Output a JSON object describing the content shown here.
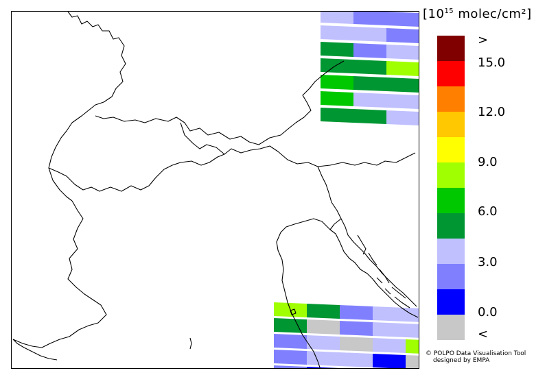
{
  "unit_label": {
    "prefix": "[10",
    "exponent": "15",
    "suffix": " molec/cm²]"
  },
  "colorbar": {
    "bins": [
      {
        "color": "#800000"
      },
      {
        "color": "#ff0000"
      },
      {
        "color": "#ff8000"
      },
      {
        "color": "#ffc800"
      },
      {
        "color": "#ffff00"
      },
      {
        "color": "#a0ff00"
      },
      {
        "color": "#00c800"
      },
      {
        "color": "#009632"
      },
      {
        "color": "#c0c0ff"
      },
      {
        "color": "#8080ff"
      },
      {
        "color": "#0000ff"
      },
      {
        "color": "#c8c8c8"
      }
    ],
    "labels": [
      ">",
      "15.0",
      "12.0",
      "9.0",
      "6.0",
      "3.0",
      "0.0",
      "<"
    ]
  },
  "credit": {
    "line1": "© POLPO Data Visualisation Tool",
    "line2": "designed by EMPA"
  },
  "swaths": {
    "north_east": {
      "rows": [
        [
          "#c0c0ff",
          "#8080ff",
          "#8080ff",
          "#8080ff"
        ],
        [
          "#c0c0ff",
          "#c0c0ff",
          "#8080ff",
          "#8080ff"
        ],
        [
          "#009632",
          "#8080ff",
          "#c0c0ff",
          "#c0c0ff"
        ],
        [
          "#009632",
          "#009632",
          "#a0ff00",
          "#00c800"
        ],
        [
          "#00c800",
          "#009632",
          "#009632",
          "#c0c0ff"
        ],
        [
          "#00c800",
          "#c0c0ff",
          "#c0c0ff",
          "#c0c0ff"
        ],
        [
          "#009632",
          "#009632",
          "#c0c0ff",
          "#009632"
        ]
      ]
    },
    "south_east": {
      "rows": [
        [
          "#a0ff00",
          "#009632",
          "#8080ff",
          "#c0c0ff",
          "#c0c0ff"
        ],
        [
          "#009632",
          "#c8c8c8",
          "#8080ff",
          "#c0c0ff",
          "#c0c0ff"
        ],
        [
          "#8080ff",
          "#c0c0ff",
          "#c8c8c8",
          "#c0c0ff",
          "#a0ff00"
        ],
        [
          "#8080ff",
          "#c0c0ff",
          "#c0c0ff",
          "#0000ff",
          "#c8c8c8"
        ],
        [
          "#8080ff",
          "#0000ff",
          "#c0c0ff",
          "#8080ff",
          "#c0c0ff"
        ]
      ]
    }
  }
}
